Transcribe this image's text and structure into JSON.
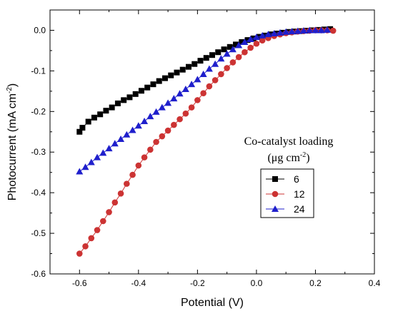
{
  "chart_data": {
    "type": "scatter",
    "xlabel": "Potential (V)",
    "ylabel_main": "Photocurrent (mA cm",
    "ylabel_sup": "-2",
    "ylabel_end": ")",
    "xlim": [
      -0.7,
      0.4
    ],
    "ylim": [
      -0.6,
      0.05
    ],
    "xticks": [
      -0.6,
      -0.4,
      -0.2,
      0.0,
      0.2,
      0.4
    ],
    "xtick_labels": [
      "-0.6",
      "-0.4",
      "-0.2",
      "0.0",
      "0.2",
      "0.4"
    ],
    "yticks": [
      0.0,
      -0.1,
      -0.2,
      -0.3,
      -0.4,
      -0.5,
      -0.6
    ],
    "ytick_labels": [
      "0.0",
      "-0.1",
      "-0.2",
      "-0.3",
      "-0.4",
      "-0.5",
      "-0.6"
    ],
    "legend_title_line1": "Co-catalyst loading",
    "legend_title_line2_main": "(μg cm",
    "legend_title_line2_sup": "-2",
    "legend_title_line2_end": ")",
    "legend_position": "right",
    "series": [
      {
        "name": "6",
        "color": "#000000",
        "marker": "square",
        "x": [
          -0.6,
          -0.59,
          -0.57,
          -0.55,
          -0.53,
          -0.51,
          -0.49,
          -0.47,
          -0.45,
          -0.43,
          -0.41,
          -0.39,
          -0.37,
          -0.35,
          -0.33,
          -0.31,
          -0.29,
          -0.27,
          -0.25,
          -0.23,
          -0.21,
          -0.19,
          -0.17,
          -0.15,
          -0.13,
          -0.11,
          -0.09,
          -0.07,
          -0.05,
          -0.03,
          -0.01,
          0.01,
          0.03,
          0.05,
          0.07,
          0.09,
          0.11,
          0.13,
          0.15,
          0.17,
          0.19,
          0.21,
          0.23,
          0.25
        ],
        "y": [
          -0.25,
          -0.24,
          -0.225,
          -0.215,
          -0.207,
          -0.198,
          -0.19,
          -0.18,
          -0.172,
          -0.165,
          -0.157,
          -0.149,
          -0.141,
          -0.133,
          -0.125,
          -0.118,
          -0.111,
          -0.104,
          -0.097,
          -0.09,
          -0.083,
          -0.075,
          -0.068,
          -0.061,
          -0.054,
          -0.047,
          -0.041,
          -0.035,
          -0.029,
          -0.024,
          -0.02,
          -0.016,
          -0.013,
          -0.01,
          -0.008,
          -0.006,
          -0.004,
          -0.003,
          -0.002,
          -0.001,
          0.0,
          0.001,
          0.002,
          0.003
        ]
      },
      {
        "name": "12",
        "color": "#cc3333",
        "marker": "circle",
        "x": [
          -0.6,
          -0.58,
          -0.56,
          -0.54,
          -0.52,
          -0.5,
          -0.48,
          -0.46,
          -0.44,
          -0.42,
          -0.4,
          -0.38,
          -0.36,
          -0.34,
          -0.32,
          -0.3,
          -0.28,
          -0.26,
          -0.24,
          -0.22,
          -0.2,
          -0.18,
          -0.16,
          -0.14,
          -0.12,
          -0.1,
          -0.08,
          -0.06,
          -0.04,
          -0.02,
          0.0,
          0.02,
          0.04,
          0.06,
          0.08,
          0.1,
          0.12,
          0.14,
          0.16,
          0.18,
          0.2,
          0.22,
          0.24,
          0.26
        ],
        "y": [
          -0.55,
          -0.532,
          -0.512,
          -0.492,
          -0.47,
          -0.448,
          -0.424,
          -0.402,
          -0.378,
          -0.356,
          -0.333,
          -0.313,
          -0.294,
          -0.275,
          -0.261,
          -0.247,
          -0.233,
          -0.219,
          -0.205,
          -0.19,
          -0.172,
          -0.155,
          -0.138,
          -0.123,
          -0.108,
          -0.093,
          -0.079,
          -0.066,
          -0.054,
          -0.043,
          -0.033,
          -0.025,
          -0.019,
          -0.014,
          -0.01,
          -0.007,
          -0.005,
          -0.003,
          -0.002,
          -0.001,
          0.0,
          0.0,
          0.0,
          -0.001
        ]
      },
      {
        "name": "24",
        "color": "#1f1fcc",
        "marker": "triangle",
        "x": [
          -0.6,
          -0.58,
          -0.56,
          -0.54,
          -0.52,
          -0.5,
          -0.48,
          -0.46,
          -0.44,
          -0.42,
          -0.4,
          -0.38,
          -0.36,
          -0.34,
          -0.32,
          -0.3,
          -0.28,
          -0.26,
          -0.24,
          -0.22,
          -0.2,
          -0.18,
          -0.16,
          -0.14,
          -0.12,
          -0.1,
          -0.08,
          -0.06,
          -0.04,
          -0.02,
          0.0,
          0.02,
          0.04,
          0.06,
          0.08,
          0.1,
          0.12,
          0.14,
          0.16,
          0.18,
          0.2,
          0.22,
          0.24
        ],
        "y": [
          -0.348,
          -0.337,
          -0.325,
          -0.313,
          -0.302,
          -0.291,
          -0.279,
          -0.268,
          -0.257,
          -0.246,
          -0.235,
          -0.224,
          -0.212,
          -0.201,
          -0.19,
          -0.179,
          -0.168,
          -0.156,
          -0.145,
          -0.133,
          -0.121,
          -0.108,
          -0.095,
          -0.083,
          -0.07,
          -0.058,
          -0.047,
          -0.037,
          -0.029,
          -0.022,
          -0.017,
          -0.013,
          -0.01,
          -0.008,
          -0.006,
          -0.004,
          -0.003,
          -0.002,
          -0.001,
          0.0,
          0.0,
          0.0,
          0.001
        ]
      }
    ]
  }
}
